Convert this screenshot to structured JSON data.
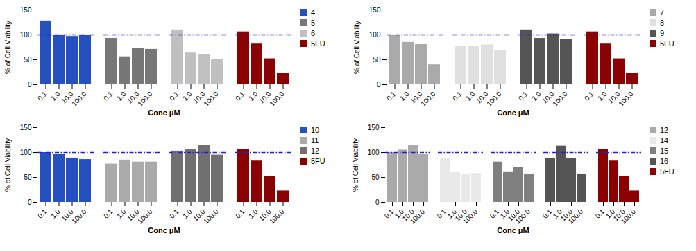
{
  "chart_data": [
    {
      "type": "bar",
      "xlabel": "Conc μM",
      "ylabel": "% of Cell Viability",
      "categories": [
        "0.1",
        "1.0",
        "10.0",
        "100.0"
      ],
      "series": [
        {
          "name": "4",
          "color": "#2550c0",
          "values": [
            128,
            100,
            97,
            99
          ]
        },
        {
          "name": "5",
          "color": "#777777",
          "values": [
            93,
            56,
            73,
            71
          ]
        },
        {
          "name": "6",
          "color": "#c0c0c0",
          "values": [
            110,
            65,
            61,
            50
          ]
        },
        {
          "name": "5FU",
          "color": "#8b0000",
          "values": [
            106,
            83,
            52,
            23
          ]
        }
      ],
      "ylim": [
        0,
        150
      ],
      "yticks": [
        0,
        50,
        100,
        150
      ],
      "grid": false,
      "legend": "right",
      "hline": {
        "value": 100,
        "color": "#2020cc",
        "line_style": "dashdot"
      }
    },
    {
      "type": "bar",
      "xlabel": "Conc μM",
      "ylabel": "% of Cell Viability",
      "categories": [
        "0.1",
        "1.0",
        "10.0",
        "100.0"
      ],
      "series": [
        {
          "name": "7",
          "color": "#aaaaaa",
          "values": [
            100,
            85,
            82,
            40
          ]
        },
        {
          "name": "8",
          "color": "#e0e0e0",
          "values": [
            77,
            77,
            80,
            69
          ]
        },
        {
          "name": "9",
          "color": "#555555",
          "values": [
            110,
            93,
            102,
            91
          ]
        },
        {
          "name": "5FU",
          "color": "#8b0000",
          "values": [
            106,
            83,
            52,
            23
          ]
        }
      ],
      "ylim": [
        0,
        150
      ],
      "yticks": [
        0,
        50,
        100,
        150
      ],
      "grid": false,
      "legend": "right",
      "hline": {
        "value": 100,
        "color": "#2020cc",
        "line_style": "dashdot"
      }
    },
    {
      "type": "bar",
      "xlabel": "Conc μM",
      "ylabel": "% of Cell Viability",
      "categories": [
        "0.1",
        "1.0",
        "10.0",
        "100.0"
      ],
      "series": [
        {
          "name": "10",
          "color": "#2550c0",
          "values": [
            100,
            96,
            89,
            86
          ]
        },
        {
          "name": "11",
          "color": "#aaaaaa",
          "values": [
            77,
            85,
            81,
            81
          ]
        },
        {
          "name": "12",
          "color": "#707070",
          "values": [
            103,
            106,
            115,
            95
          ]
        },
        {
          "name": "5FU",
          "color": "#8b0000",
          "values": [
            106,
            83,
            52,
            23
          ]
        }
      ],
      "ylim": [
        0,
        150
      ],
      "yticks": [
        0,
        50,
        100,
        150
      ],
      "grid": false,
      "legend": "right",
      "hline": {
        "value": 100,
        "color": "#2020cc",
        "line_style": "dashdot"
      }
    },
    {
      "type": "bar",
      "xlabel": "Conc μM",
      "ylabel": "% of Cell Viability",
      "categories": [
        "0.1",
        "1.0",
        "10.0",
        "100.0"
      ],
      "series": [
        {
          "name": "12",
          "color": "#aaaaaa",
          "values": [
            100,
            105,
            115,
            96
          ]
        },
        {
          "name": "14",
          "color": "#e8e8e8",
          "values": [
            88,
            60,
            57,
            58
          ]
        },
        {
          "name": "15",
          "color": "#808080",
          "values": [
            81,
            60,
            70,
            57
          ]
        },
        {
          "name": "16",
          "color": "#555555",
          "values": [
            88,
            113,
            88,
            57
          ]
        },
        {
          "name": "5FU",
          "color": "#8b0000",
          "values": [
            106,
            83,
            52,
            23
          ]
        }
      ],
      "ylim": [
        0,
        150
      ],
      "yticks": [
        0,
        50,
        100,
        150
      ],
      "grid": false,
      "legend": "right",
      "hline": {
        "value": 100,
        "color": "#2020cc",
        "line_style": "dashdot"
      }
    }
  ]
}
